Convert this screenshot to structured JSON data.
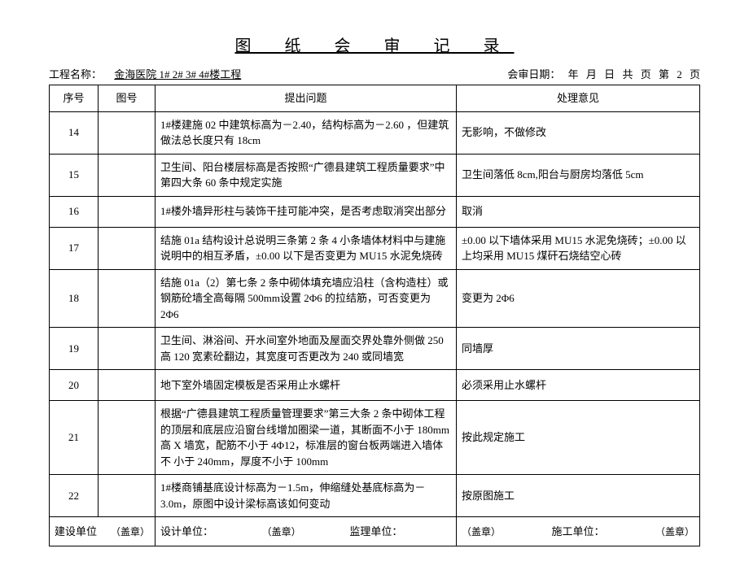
{
  "title": "图 纸 会 审 记 录",
  "header": {
    "project_label": "工程名称：",
    "project_name": "金海医院 1# 2# 3# 4#楼工程",
    "review_date_label": "会审日期：",
    "year_unit": "年",
    "month_unit": "月",
    "day_unit": "日",
    "total_unit_prefix": "共",
    "total_unit_suffix": "页",
    "page_prefix": "第",
    "page_number": "2",
    "page_suffix": "页"
  },
  "columns": {
    "seq": "序号",
    "fig": "图号",
    "issue": "提出问题",
    "resolution": "处理意见"
  },
  "rows": [
    {
      "seq": "14",
      "fig": "",
      "issue": "1#楼建施 02 中建筑标高为－2.40，结构标高为－2.60 ，但建筑做法总长度只有 18cm",
      "resolution": "无影响，不做修改"
    },
    {
      "seq": "15",
      "fig": "",
      "issue": "卫生间、阳台楼层标高是否按照“广德县建筑工程质量要求”中第四大条  60 条中规定实施",
      "resolution": "卫生间落低 8cm,阳台与厨房均落低 5cm"
    },
    {
      "seq": "16",
      "fig": "",
      "issue": "1#楼外墙异形柱与装饰干挂可能冲突，是否考虑取消突出部分",
      "resolution": "取消"
    },
    {
      "seq": "17",
      "fig": "",
      "issue": "结施 01a 结构设计总说明三条第 2 条  4 小条墙体材料中与建施说明中的相互矛盾，±0.00 以下是否变更为 MU15 水泥免烧砖",
      "resolution": "±0.00 以下墙体采用 MU15 水泥免烧砖；±0.00 以上均采用 MU15 煤矸石烧结空心砖"
    },
    {
      "seq": "18",
      "fig": "",
      "issue": "结施 01a（2）第七条  2 条中砌体填充墙应沿柱（含构造柱）或钢筋砼墙全高每隔 500mm设置 2Φ6 的拉结筋，可否变更为 2Φ6",
      "resolution": "变更为 2Φ6"
    },
    {
      "seq": "19",
      "fig": "",
      "issue": "卫生间、淋浴间、开水间室外地面及屋面交界处靠外侧做 250 高 120 宽素砼翻边，其宽度可否更改为 240 或同墙宽",
      "resolution": "同墙厚"
    },
    {
      "seq": "20",
      "fig": "",
      "issue": "地下室外墙固定模板是否采用止水螺杆",
      "resolution": "必须采用止水螺杆"
    },
    {
      "seq": "21",
      "fig": "",
      "issue": "根据“广德县建筑工程质量管理要求”第三大条 2 条中砌体工程的顶层和底层应沿窗台线增加圈梁一道，其断面不小于 180mm高 X 墙宽，配筋不小于 4Φ12，标准层的窗台板两端进入墙体不  小于 240mm，厚度不小于 100mm",
      "resolution": "按此规定施工"
    },
    {
      "seq": "22",
      "fig": "",
      "issue": "1#楼商铺基底设计标高为－1.5m，伸缩缝处基底标高为－3.0m，原图中设计梁标高该如何变动",
      "resolution": "按原图施工"
    }
  ],
  "footer": {
    "build_unit": "建设单位",
    "design_unit": "设计单位：",
    "supervise_unit": "监理单位：",
    "construct_unit": "施工单位：",
    "stamp": "（盖章）"
  }
}
